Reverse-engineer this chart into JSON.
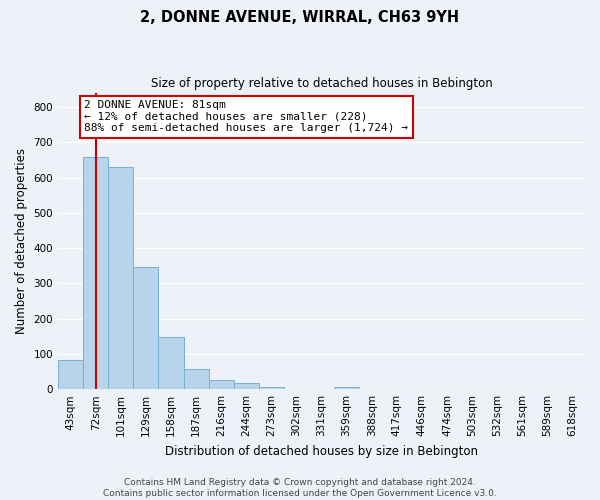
{
  "title": "2, DONNE AVENUE, WIRRAL, CH63 9YH",
  "subtitle": "Size of property relative to detached houses in Bebington",
  "xlabel": "Distribution of detached houses by size in Bebington",
  "ylabel": "Number of detached properties",
  "bin_labels": [
    "43sqm",
    "72sqm",
    "101sqm",
    "129sqm",
    "158sqm",
    "187sqm",
    "216sqm",
    "244sqm",
    "273sqm",
    "302sqm",
    "331sqm",
    "359sqm",
    "388sqm",
    "417sqm",
    "446sqm",
    "474sqm",
    "503sqm",
    "532sqm",
    "561sqm",
    "589sqm",
    "618sqm"
  ],
  "bar_values": [
    82,
    660,
    630,
    348,
    148,
    57,
    26,
    18,
    7,
    0,
    0,
    6,
    0,
    0,
    0,
    0,
    0,
    0,
    0,
    0,
    0
  ],
  "bar_color": "#b8d4ea",
  "bar_edge_color": "#7aafd4",
  "vline_x": 1,
  "vline_color": "#cc0000",
  "annotation_text": "2 DONNE AVENUE: 81sqm\n← 12% of detached houses are smaller (228)\n88% of semi-detached houses are larger (1,724) →",
  "annotation_box_facecolor": "#ffffff",
  "annotation_box_edgecolor": "#cc0000",
  "ylim": [
    0,
    840
  ],
  "yticks": [
    0,
    100,
    200,
    300,
    400,
    500,
    600,
    700,
    800
  ],
  "footer_line1": "Contains HM Land Registry data © Crown copyright and database right 2024.",
  "footer_line2": "Contains public sector information licensed under the Open Government Licence v3.0.",
  "bg_color": "#eef2f8",
  "grid_color": "#ffffff",
  "title_fontsize": 10.5,
  "subtitle_fontsize": 8.5,
  "ylabel_fontsize": 8.5,
  "xlabel_fontsize": 8.5,
  "tick_fontsize": 7.5,
  "footer_fontsize": 6.5,
  "ann_fontsize": 8.0
}
